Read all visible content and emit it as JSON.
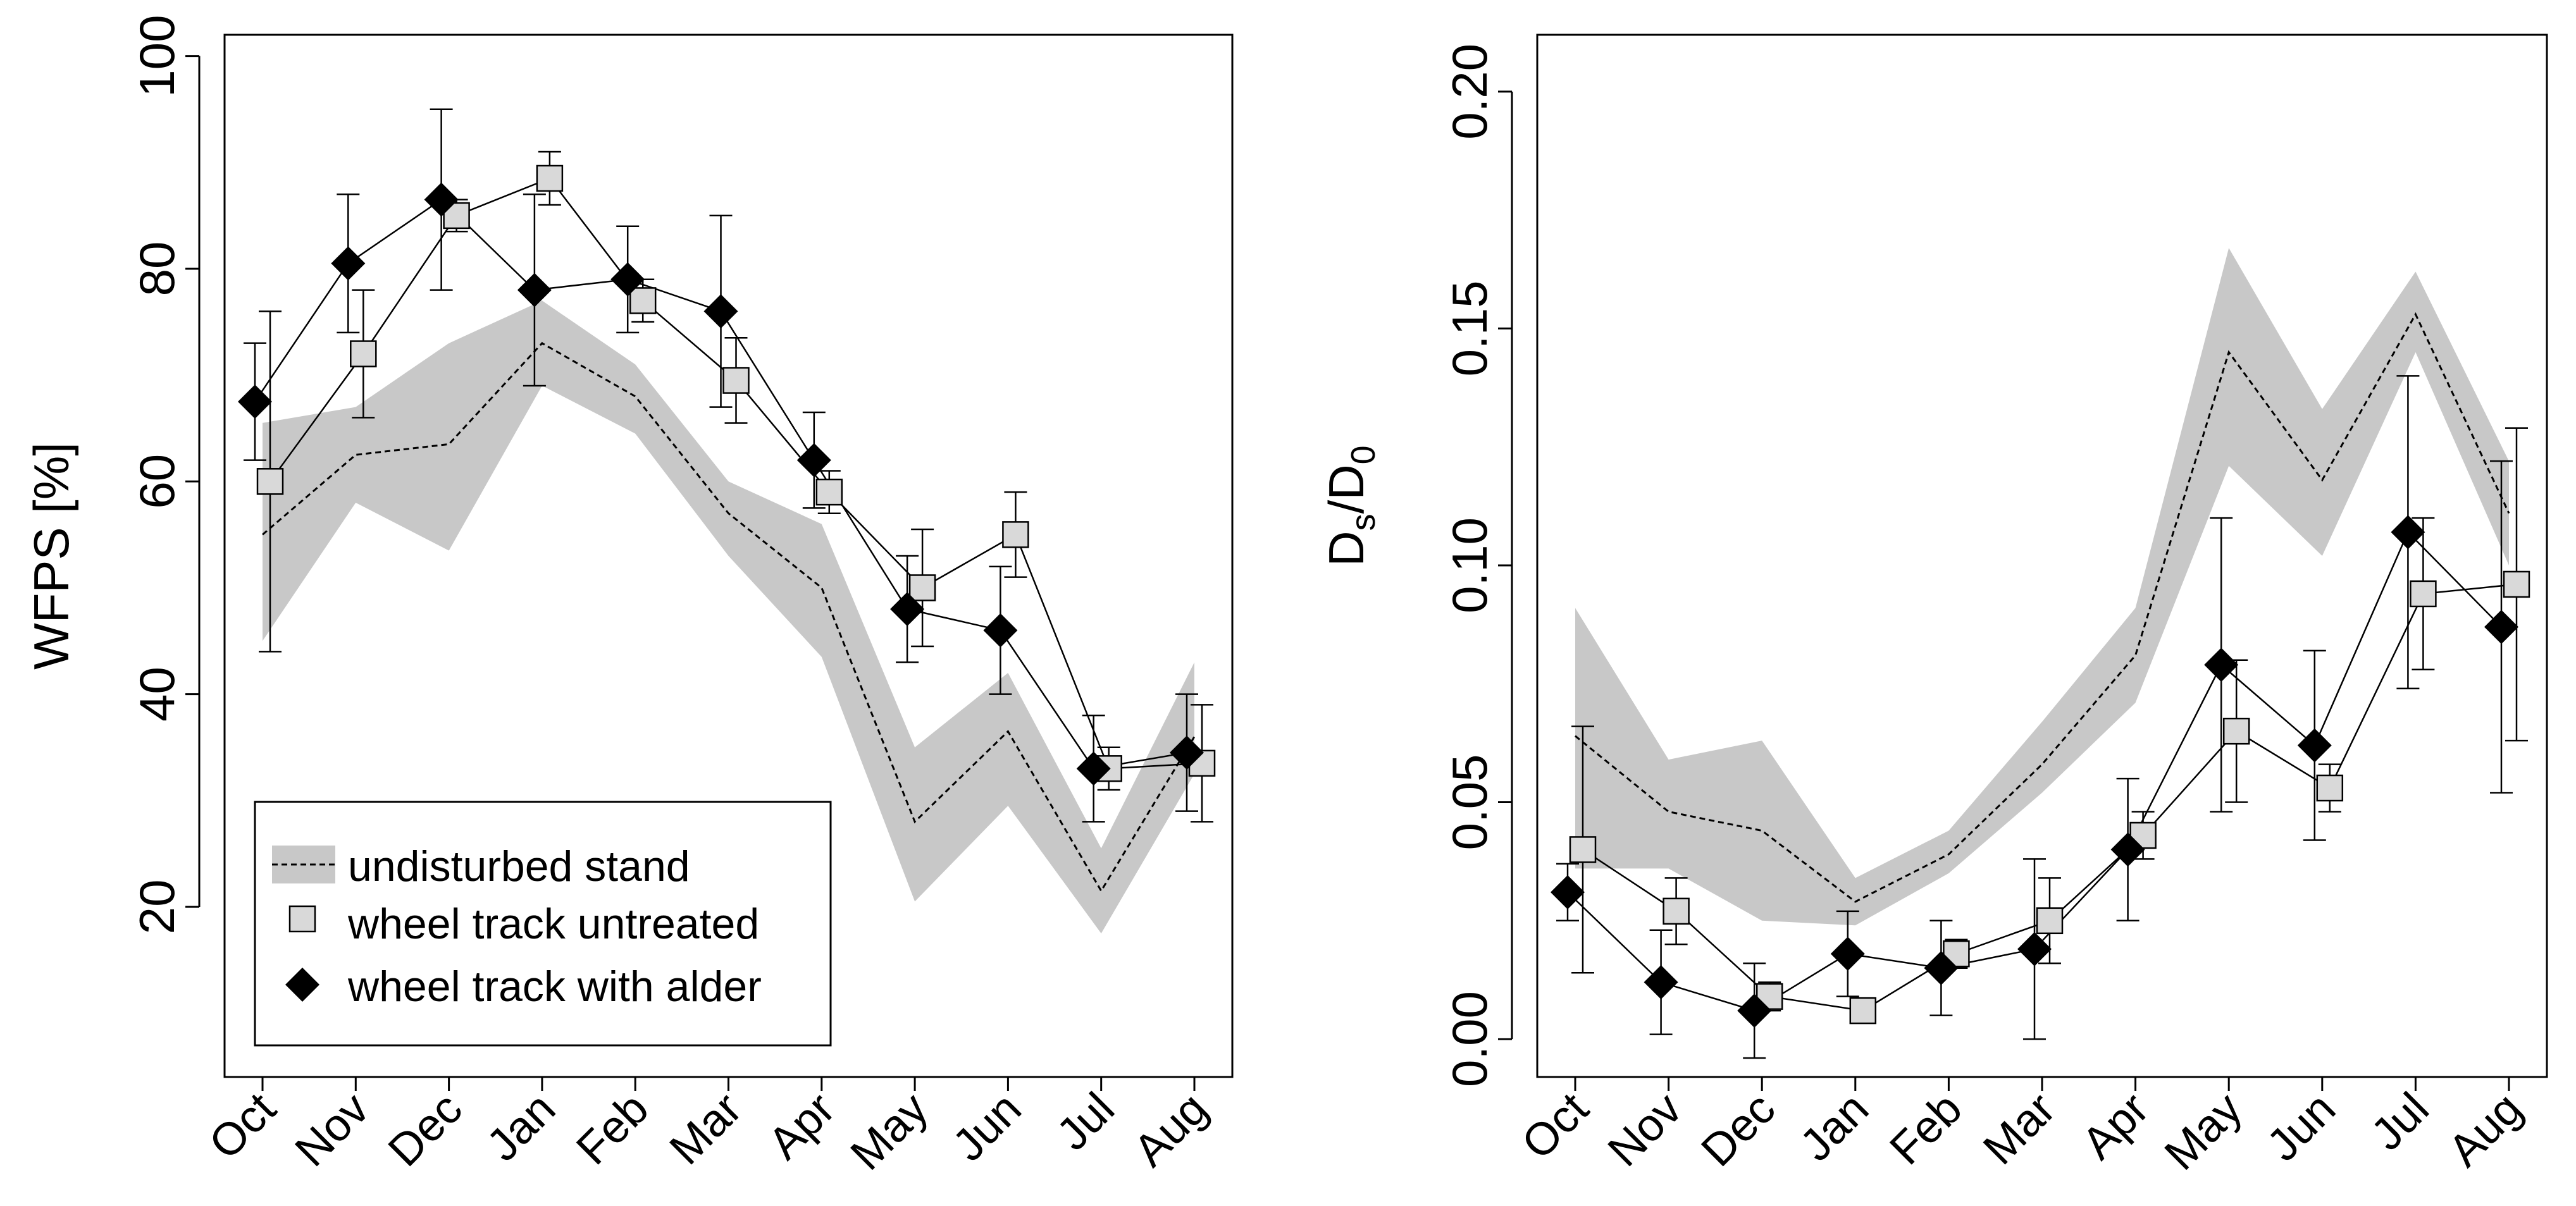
{
  "chart_data": [
    {
      "type": "line",
      "ylabel": "WFPS [%]",
      "xlabel": "",
      "categories": [
        "Oct",
        "Nov",
        "Dec",
        "Jan",
        "Feb",
        "Mar",
        "Apr",
        "May",
        "Jun",
        "Jul",
        "Aug"
      ],
      "ylim": [
        4,
        102
      ],
      "yticks": [
        20,
        40,
        60,
        80,
        100
      ],
      "ytick_labels": [
        "20",
        "40",
        "60",
        "80",
        "100"
      ],
      "legend": {
        "position": "bottom-left",
        "entries": [
          "undisturbed stand",
          "wheel track untreated",
          "wheel track with alder"
        ]
      },
      "band": {
        "name": "undisturbed stand",
        "mean": [
          55,
          62.5,
          63.5,
          73,
          68,
          57,
          50,
          28,
          36.5,
          21.5,
          36
        ],
        "lower": [
          45,
          58,
          53.5,
          69,
          64.5,
          53,
          43.5,
          20.5,
          29.5,
          17.5,
          32.5
        ],
        "upper": [
          65.5,
          67,
          73,
          77,
          71,
          60,
          56,
          35,
          42,
          25.5,
          43
        ]
      },
      "series": [
        {
          "name": "wheel track untreated",
          "values": [
            60,
            72,
            85,
            88.5,
            77,
            69.5,
            59,
            50,
            55,
            33,
            33.5
          ],
          "err": [
            16,
            6,
            1.5,
            2.5,
            2,
            4,
            2,
            5.5,
            4,
            2,
            5.5
          ]
        },
        {
          "name": "wheel track with alder",
          "values": [
            67.5,
            80.5,
            86.5,
            78,
            79,
            76,
            62,
            48,
            46,
            33,
            34.5
          ],
          "err": [
            5.5,
            6.5,
            8.5,
            9,
            5,
            9,
            4.5,
            5,
            6,
            5,
            5.5
          ]
        }
      ]
    },
    {
      "type": "line",
      "ylabel_main": "D",
      "ylabel_sub1": "s",
      "ylabel_mid": "/D",
      "ylabel_sub2": "0",
      "xlabel": "",
      "categories": [
        "Oct",
        "Nov",
        "Dec",
        "Jan",
        "Feb",
        "Mar",
        "Apr",
        "May",
        "Jun",
        "Jul",
        "Aug"
      ],
      "ylim": [
        -0.008,
        0.212
      ],
      "yticks": [
        0.0,
        0.05,
        0.1,
        0.15,
        0.2
      ],
      "ytick_labels": [
        "0.00",
        "0.05",
        "0.10",
        "0.15",
        "0.20"
      ],
      "band": {
        "name": "undisturbed stand",
        "mean": [
          0.064,
          0.048,
          0.044,
          0.029,
          0.039,
          0.058,
          0.081,
          0.145,
          0.118,
          0.153,
          0.111
        ],
        "lower": [
          0.036,
          0.036,
          0.025,
          0.024,
          0.035,
          0.052,
          0.071,
          0.121,
          0.102,
          0.145,
          0.1
        ],
        "upper": [
          0.091,
          0.059,
          0.063,
          0.034,
          0.044,
          0.067,
          0.091,
          0.167,
          0.133,
          0.162,
          0.122
        ]
      },
      "series": [
        {
          "name": "wheel track untreated",
          "values": [
            0.04,
            0.027,
            0.009,
            0.006,
            0.018,
            0.025,
            0.043,
            0.065,
            0.053,
            0.094,
            0.096
          ],
          "err": [
            0.026,
            0.007,
            0.003,
            0.002,
            0.003,
            0.009,
            0.005,
            0.015,
            0.005,
            0.016,
            0.033
          ]
        },
        {
          "name": "wheel track with alder",
          "values": [
            0.031,
            0.012,
            0.006,
            0.018,
            0.015,
            0.019,
            0.04,
            0.079,
            0.062,
            0.107,
            0.087
          ],
          "err": [
            0.006,
            0.011,
            0.01,
            0.009,
            0.01,
            0.019,
            0.015,
            0.031,
            0.02,
            0.033,
            0.035
          ]
        }
      ]
    }
  ]
}
